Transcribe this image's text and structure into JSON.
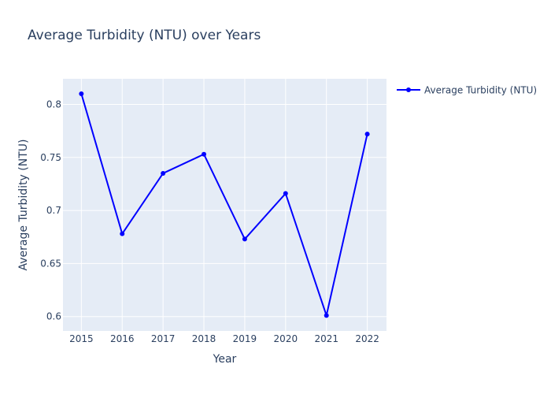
{
  "chart_data": {
    "type": "line",
    "title": "Average Turbidity (NTU) over Years",
    "xlabel": "Year",
    "ylabel": "Average Turbidity (NTU)",
    "x": [
      2015,
      2016,
      2017,
      2018,
      2019,
      2020,
      2021,
      2022
    ],
    "x_ticks": [
      "2015",
      "2016",
      "2017",
      "2018",
      "2019",
      "2020",
      "2021",
      "2022"
    ],
    "xlim": [
      2014.55,
      2022.47
    ],
    "y_ticks": [
      "0.6",
      "0.65",
      "0.7",
      "0.75",
      "0.8"
    ],
    "ylim": [
      0.5864,
      0.8241
    ],
    "grid": true,
    "legend_position": "top-right",
    "series": [
      {
        "name": "Average Turbidity (NTU)",
        "color": "#0000ff",
        "marker": "circle",
        "values": [
          0.81,
          0.678,
          0.735,
          0.753,
          0.673,
          0.716,
          0.601,
          0.772
        ]
      }
    ]
  }
}
